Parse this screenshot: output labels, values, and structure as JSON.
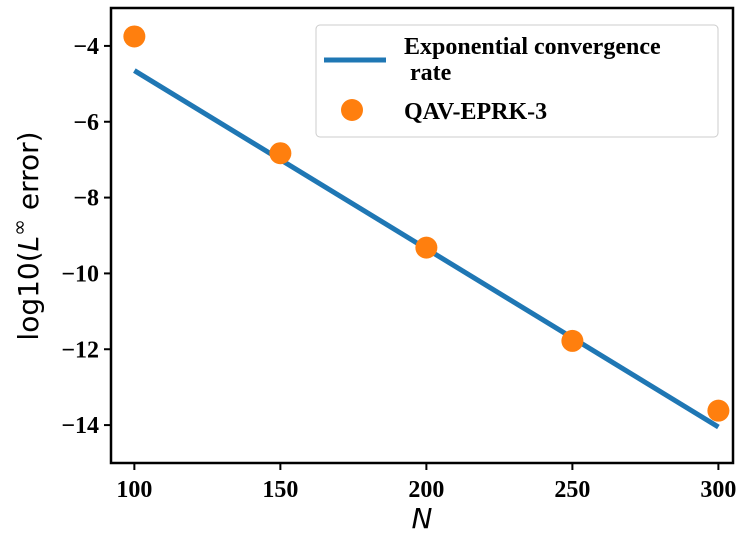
{
  "chart_data": {
    "type": "scatter",
    "xlabel": "N",
    "ylabel_prefix": "log10(",
    "ylabel_L": "L",
    "ylabel_sup": "∞",
    "ylabel_suffix": " error)",
    "xlim": [
      92,
      305
    ],
    "ylim": [
      -15,
      -3
    ],
    "xticks": [
      100,
      150,
      200,
      250,
      300
    ],
    "xtick_labels": [
      "100",
      "150",
      "200",
      "250",
      "300"
    ],
    "yticks": [
      -14,
      -12,
      -10,
      -8,
      -6,
      -4
    ],
    "ytick_labels": [
      "−14",
      "−12",
      "−10",
      "−8",
      "−6",
      "−4"
    ],
    "series": [
      {
        "name_line1": "Exponential convergence",
        "name_line2": "rate",
        "kind": "line",
        "color": "#1f77b4",
        "x": [
          100,
          300
        ],
        "y": [
          -4.65,
          -14.05
        ]
      },
      {
        "name": "QAV-EPRK-3",
        "kind": "scatter",
        "color": "#ff7f0e",
        "x": [
          100,
          150,
          200,
          250,
          300
        ],
        "y": [
          -3.75,
          -6.83,
          -9.32,
          -11.78,
          -13.62
        ]
      }
    ],
    "legend": "top-right",
    "grid": false
  }
}
